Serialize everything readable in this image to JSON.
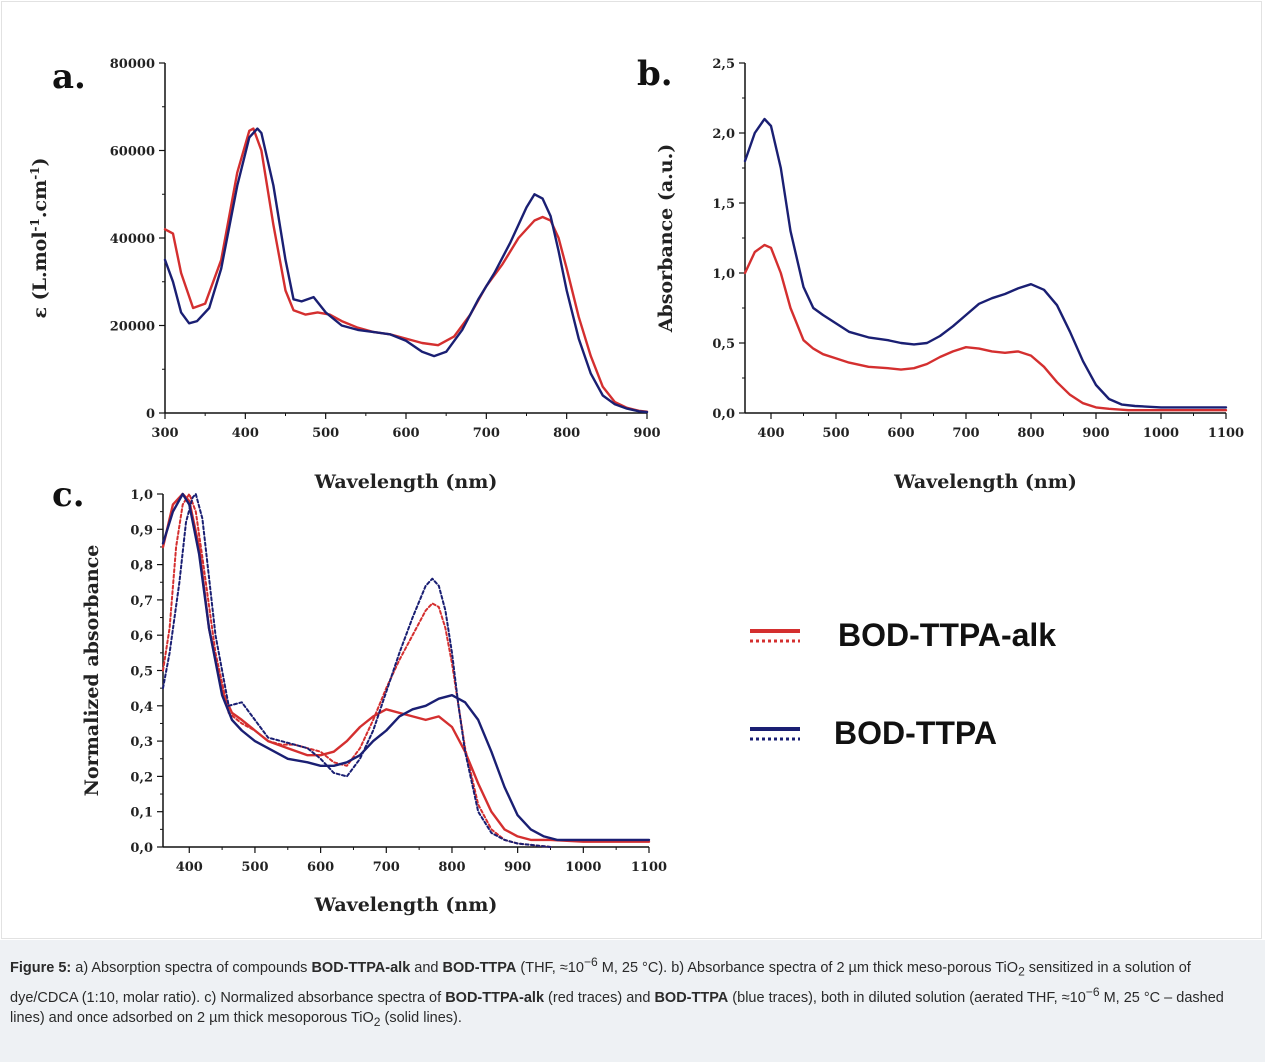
{
  "colors": {
    "red": "#d42f2f",
    "blue": "#1a1f73"
  },
  "panels": {
    "a": "a.",
    "b": "b.",
    "c": "c."
  },
  "legend": {
    "items": [
      {
        "label": "BOD-TTPA-alk",
        "color": "#d42f2f"
      },
      {
        "label": "BOD-TTPA",
        "color": "#1a1f73"
      }
    ]
  },
  "caption": {
    "label": "Figure 5:",
    "p1": " a) Absorption spectra of compounds ",
    "c1": "BOD-TTPA-alk",
    "p2": " and ",
    "c2": "BOD-TTPA",
    "p3a": " (THF, ≈10",
    "exp1": "−6",
    "p3b": " M, 25 °C). b) Absorbance spectra of 2 µm thick meso-porous TiO",
    "sub1": "2",
    "p4": " sensitized in a solution of dye/CDCA (1:10, molar ratio). c) Normalized absorbance spectra of ",
    "c3": "BOD-TTPA-alk",
    "p5": " (red traces) and ",
    "c4": "BOD-TTPA",
    "p6a": " (blue traces), both in diluted solution (aerated THF, ≈10",
    "exp2": "−6",
    "p6b": " M, 25 °C – dashed lines) and once adsorbed on 2 µm thick mesoporous TiO",
    "sub2": "2",
    "p7": " (solid lines)."
  },
  "chart_data": [
    {
      "type": "line",
      "panel": "a.",
      "xlabel": "Wavelength (nm)",
      "ylabel": "ε (L.mol-1.cm-1)",
      "xlim": [
        300,
        900
      ],
      "ylim": [
        0,
        80000
      ],
      "xticks": [
        300,
        400,
        500,
        600,
        700,
        800,
        900
      ],
      "yticks": [
        0,
        20000,
        40000,
        60000,
        80000
      ],
      "series": [
        {
          "name": "BOD-TTPA-alk",
          "color": "#d42f2f",
          "dash": false,
          "x": [
            300,
            310,
            320,
            335,
            350,
            370,
            390,
            405,
            410,
            420,
            435,
            450,
            460,
            475,
            490,
            505,
            520,
            540,
            560,
            580,
            600,
            620,
            640,
            660,
            680,
            700,
            720,
            740,
            760,
            770,
            780,
            790,
            800,
            815,
            830,
            845,
            860,
            875,
            890,
            900
          ],
          "y": [
            42000,
            41000,
            32000,
            24000,
            25000,
            35000,
            55000,
            64500,
            65000,
            60000,
            43000,
            28000,
            23500,
            22500,
            23000,
            22500,
            21000,
            19500,
            18500,
            18000,
            17000,
            16000,
            15500,
            17500,
            22500,
            29000,
            34000,
            40000,
            44000,
            44800,
            44000,
            40000,
            33000,
            22000,
            13000,
            6000,
            2500,
            1200,
            500,
            300
          ]
        },
        {
          "name": "BOD-TTPA",
          "color": "#1a1f73",
          "dash": false,
          "x": [
            300,
            310,
            320,
            330,
            340,
            355,
            370,
            390,
            405,
            415,
            420,
            435,
            450,
            460,
            470,
            485,
            500,
            520,
            540,
            560,
            580,
            600,
            620,
            635,
            650,
            670,
            690,
            710,
            730,
            750,
            760,
            770,
            780,
            790,
            800,
            815,
            830,
            845,
            860,
            875,
            890,
            900
          ],
          "y": [
            35000,
            30000,
            23000,
            20500,
            21000,
            24000,
            33000,
            52000,
            63000,
            65000,
            64000,
            52000,
            35000,
            26000,
            25500,
            26500,
            23000,
            20000,
            19000,
            18500,
            18000,
            16500,
            14000,
            13000,
            14000,
            19000,
            26000,
            32000,
            39000,
            47000,
            50000,
            49000,
            45000,
            37000,
            28000,
            17000,
            9000,
            4000,
            2000,
            1000,
            400,
            200
          ]
        }
      ]
    },
    {
      "type": "line",
      "panel": "b.",
      "xlabel": "Wavelength (nm)",
      "ylabel": "Absorbance (a.u.)",
      "xlim": [
        360,
        1100
      ],
      "ylim": [
        0,
        2.5
      ],
      "xticks": [
        400,
        500,
        600,
        700,
        800,
        900,
        1000,
        1100
      ],
      "yticks": [
        0,
        0.5,
        1.0,
        1.5,
        2.0,
        2.5
      ],
      "ytick_labels": [
        "0,0",
        "0,5",
        "1,0",
        "1,5",
        "2,0",
        "2,5"
      ],
      "series": [
        {
          "name": "BOD-TTPA",
          "color": "#1a1f73",
          "dash": false,
          "x": [
            360,
            375,
            390,
            400,
            415,
            430,
            450,
            465,
            480,
            500,
            520,
            550,
            580,
            600,
            620,
            640,
            660,
            680,
            700,
            720,
            740,
            760,
            780,
            800,
            820,
            840,
            860,
            880,
            900,
            920,
            940,
            960,
            1000,
            1050,
            1100
          ],
          "y": [
            1.8,
            2.0,
            2.1,
            2.05,
            1.75,
            1.3,
            0.9,
            0.75,
            0.7,
            0.64,
            0.58,
            0.54,
            0.52,
            0.5,
            0.49,
            0.5,
            0.55,
            0.62,
            0.7,
            0.78,
            0.82,
            0.85,
            0.89,
            0.92,
            0.88,
            0.77,
            0.58,
            0.37,
            0.2,
            0.1,
            0.06,
            0.05,
            0.04,
            0.04,
            0.04
          ]
        },
        {
          "name": "BOD-TTPA-alk",
          "color": "#d42f2f",
          "dash": false,
          "x": [
            360,
            375,
            390,
            400,
            415,
            430,
            450,
            465,
            480,
            500,
            520,
            550,
            580,
            600,
            620,
            640,
            660,
            680,
            700,
            720,
            740,
            760,
            780,
            800,
            820,
            840,
            860,
            880,
            900,
            920,
            950,
            1000,
            1050,
            1100
          ],
          "y": [
            1.0,
            1.15,
            1.2,
            1.18,
            1.0,
            0.75,
            0.52,
            0.46,
            0.42,
            0.39,
            0.36,
            0.33,
            0.32,
            0.31,
            0.32,
            0.35,
            0.4,
            0.44,
            0.47,
            0.46,
            0.44,
            0.43,
            0.44,
            0.41,
            0.33,
            0.22,
            0.13,
            0.07,
            0.04,
            0.03,
            0.02,
            0.02,
            0.02,
            0.02
          ]
        }
      ]
    },
    {
      "type": "line",
      "panel": "c.",
      "xlabel": "Wavelength (nm)",
      "ylabel": "Normalized absorbance",
      "xlim": [
        360,
        1100
      ],
      "ylim": [
        0,
        1.0
      ],
      "xticks": [
        400,
        500,
        600,
        700,
        800,
        900,
        1000,
        1100
      ],
      "yticks": [
        0,
        0.1,
        0.2,
        0.3,
        0.4,
        0.5,
        0.6,
        0.7,
        0.8,
        0.9,
        1.0
      ],
      "ytick_labels": [
        "0,0",
        "0,1",
        "0,2",
        "0,3",
        "0,4",
        "0,5",
        "0,6",
        "0,7",
        "0,8",
        "0,9",
        "1,0"
      ],
      "series": [
        {
          "name": "BOD-TTPA-alk",
          "color": "#d42f2f",
          "dash": false,
          "x": [
            360,
            375,
            390,
            400,
            415,
            430,
            450,
            465,
            480,
            500,
            520,
            550,
            580,
            600,
            620,
            640,
            660,
            680,
            700,
            720,
            740,
            760,
            780,
            800,
            820,
            840,
            860,
            880,
            900,
            920,
            950,
            1000,
            1050,
            1100
          ],
          "y": [
            0.85,
            0.97,
            1.0,
            0.98,
            0.85,
            0.62,
            0.44,
            0.38,
            0.36,
            0.33,
            0.3,
            0.28,
            0.26,
            0.26,
            0.27,
            0.3,
            0.34,
            0.37,
            0.39,
            0.38,
            0.37,
            0.36,
            0.37,
            0.34,
            0.27,
            0.18,
            0.1,
            0.05,
            0.03,
            0.02,
            0.02,
            0.015,
            0.015,
            0.015
          ]
        },
        {
          "name": "BOD-TTPA-alk",
          "color": "#d42f2f",
          "dash": true,
          "x": [
            360,
            370,
            380,
            390,
            400,
            410,
            420,
            440,
            460,
            480,
            500,
            520,
            540,
            560,
            580,
            600,
            620,
            640,
            660,
            680,
            700,
            720,
            740,
            760,
            770,
            780,
            790,
            800,
            810,
            820,
            840,
            860,
            880,
            900,
            950
          ],
          "y": [
            0.5,
            0.62,
            0.85,
            0.97,
            1.0,
            0.95,
            0.82,
            0.55,
            0.38,
            0.35,
            0.33,
            0.3,
            0.29,
            0.29,
            0.28,
            0.27,
            0.24,
            0.23,
            0.28,
            0.36,
            0.45,
            0.53,
            0.6,
            0.67,
            0.69,
            0.68,
            0.62,
            0.52,
            0.4,
            0.28,
            0.12,
            0.05,
            0.02,
            0.01,
            0.0
          ]
        },
        {
          "name": "BOD-TTPA",
          "color": "#1a1f73",
          "dash": false,
          "x": [
            360,
            375,
            390,
            400,
            415,
            430,
            450,
            465,
            480,
            500,
            520,
            550,
            580,
            600,
            620,
            640,
            660,
            680,
            700,
            720,
            740,
            760,
            780,
            800,
            820,
            840,
            860,
            880,
            900,
            920,
            940,
            960,
            1000,
            1050,
            1100
          ],
          "y": [
            0.86,
            0.95,
            1.0,
            0.97,
            0.83,
            0.62,
            0.43,
            0.36,
            0.33,
            0.3,
            0.28,
            0.25,
            0.24,
            0.23,
            0.23,
            0.24,
            0.26,
            0.3,
            0.33,
            0.37,
            0.39,
            0.4,
            0.42,
            0.43,
            0.41,
            0.36,
            0.27,
            0.17,
            0.09,
            0.05,
            0.03,
            0.02,
            0.02,
            0.02,
            0.02
          ]
        },
        {
          "name": "BOD-TTPA",
          "color": "#1a1f73",
          "dash": true,
          "x": [
            360,
            370,
            385,
            395,
            405,
            410,
            420,
            440,
            460,
            480,
            500,
            520,
            540,
            560,
            580,
            600,
            620,
            640,
            660,
            680,
            700,
            720,
            740,
            760,
            770,
            780,
            790,
            800,
            810,
            820,
            840,
            860,
            880,
            900,
            950
          ],
          "y": [
            0.45,
            0.55,
            0.75,
            0.92,
            0.99,
            1.0,
            0.93,
            0.6,
            0.4,
            0.41,
            0.36,
            0.31,
            0.3,
            0.29,
            0.28,
            0.25,
            0.21,
            0.2,
            0.25,
            0.33,
            0.44,
            0.55,
            0.65,
            0.74,
            0.76,
            0.74,
            0.67,
            0.55,
            0.4,
            0.27,
            0.1,
            0.04,
            0.02,
            0.01,
            0.0
          ]
        }
      ]
    }
  ]
}
